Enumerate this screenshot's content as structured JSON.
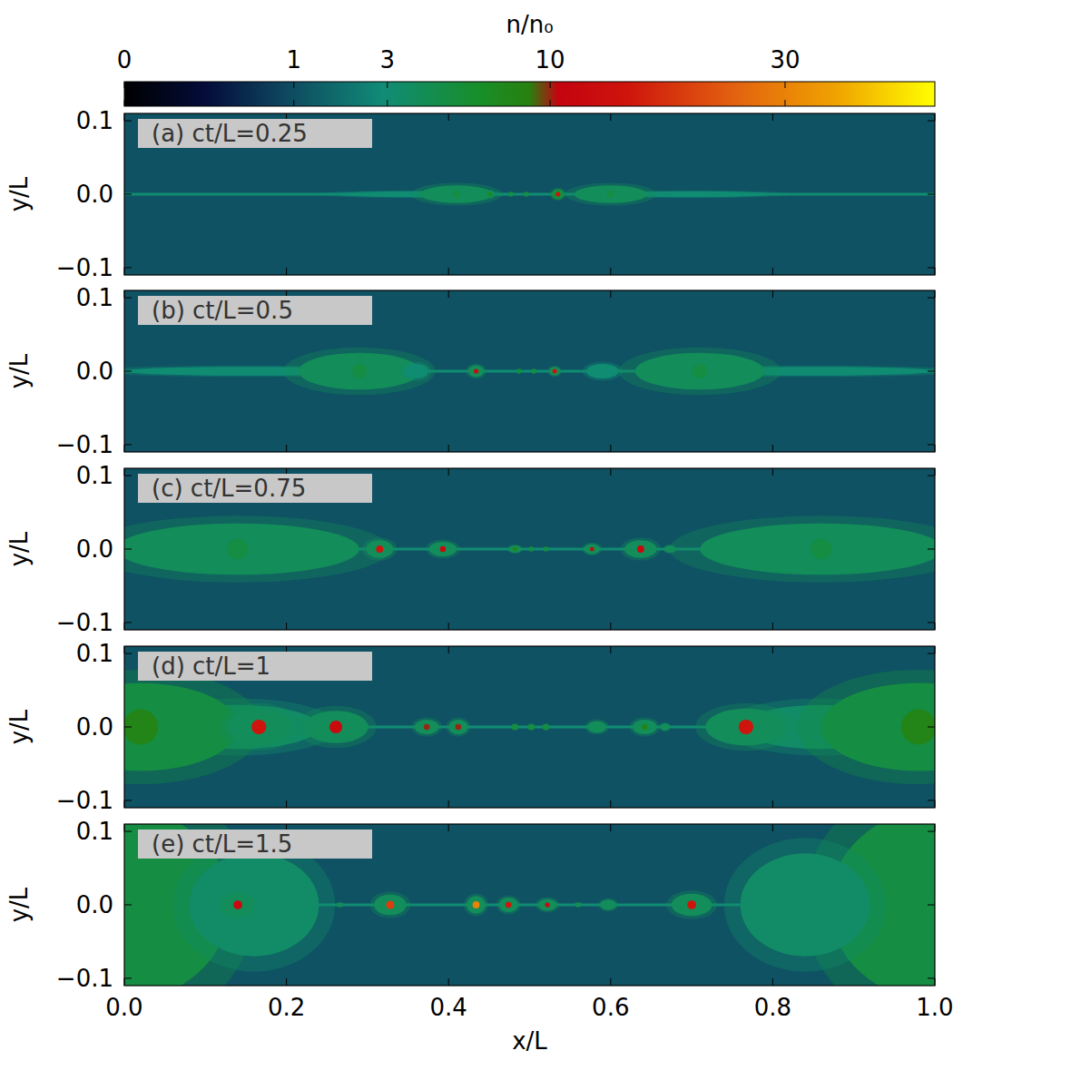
{
  "chart_data": {
    "type": "heatmap",
    "xlabel": "x/L",
    "ylabel": "y/L",
    "xlim": [
      0,
      1
    ],
    "ylim": [
      -0.11,
      0.11
    ],
    "xticks": [
      {
        "value": 0,
        "label": "0.0"
      },
      0.2,
      0.4,
      0.6,
      0.8,
      {
        "value": 1,
        "label": "1.0"
      }
    ],
    "yticks": [
      {
        "value": -0.1,
        "label": "−0.1"
      },
      {
        "value": 0,
        "label": "0.0"
      },
      0.1
    ],
    "colorbar": {
      "label": "n/n₀",
      "range": [
        0,
        50
      ],
      "ticks": [
        0,
        1,
        3,
        10,
        30
      ]
    },
    "panels": [
      {
        "title": "(a) ct/L=0.25",
        "background": 1.1,
        "sheet": 3,
        "plasmoids": [
          {
            "x": 0.36,
            "y": 0,
            "dx": 0.1,
            "dy": 0.004,
            "n": 3,
            "core": null
          },
          {
            "x": 0.7,
            "y": 0,
            "dx": 0.1,
            "dy": 0.004,
            "n": 3,
            "core": null
          },
          {
            "x": 0.41,
            "y": 0,
            "dx": 0.045,
            "dy": 0.012,
            "n": 4,
            "core": 5
          },
          {
            "x": 0.451,
            "y": 0,
            "dx": 0.006,
            "dy": 0.005,
            "n": 4,
            "core": 7
          },
          {
            "x": 0.477,
            "y": 0,
            "dx": 0.003,
            "dy": 0.003,
            "n": 5,
            "core": null
          },
          {
            "x": 0.496,
            "y": 0,
            "dx": 0.003,
            "dy": 0.003,
            "n": 5,
            "core": null
          },
          {
            "x": 0.535,
            "y": 0,
            "dx": 0.008,
            "dy": 0.007,
            "n": 5,
            "core": 15
          },
          {
            "x": 0.6,
            "y": 0,
            "dx": 0.045,
            "dy": 0.012,
            "n": 4,
            "core": 5
          }
        ]
      },
      {
        "title": "(b) ct/L=0.5",
        "background": 1.1,
        "sheet": 3,
        "plasmoids": [
          {
            "x": 0.15,
            "y": 0,
            "dx": 0.15,
            "dy": 0.006,
            "n": 3,
            "core": null
          },
          {
            "x": 0.85,
            "y": 0,
            "dx": 0.15,
            "dy": 0.006,
            "n": 3,
            "core": null
          },
          {
            "x": 0.29,
            "y": 0,
            "dx": 0.075,
            "dy": 0.025,
            "n": 4,
            "core": 5
          },
          {
            "x": 0.36,
            "y": 0,
            "dx": 0.015,
            "dy": 0.01,
            "n": 3,
            "core": null
          },
          {
            "x": 0.434,
            "y": 0,
            "dx": 0.01,
            "dy": 0.008,
            "n": 4,
            "core": 12
          },
          {
            "x": 0.487,
            "y": 0,
            "dx": 0.003,
            "dy": 0.003,
            "n": 5,
            "core": null
          },
          {
            "x": 0.505,
            "y": 0,
            "dx": 0.003,
            "dy": 0.003,
            "n": 5,
            "core": null
          },
          {
            "x": 0.531,
            "y": 0,
            "dx": 0.007,
            "dy": 0.006,
            "n": 4,
            "core": 15
          },
          {
            "x": 0.59,
            "y": 0,
            "dx": 0.02,
            "dy": 0.01,
            "n": 3,
            "core": null
          },
          {
            "x": 0.71,
            "y": 0,
            "dx": 0.08,
            "dy": 0.025,
            "n": 4,
            "core": 5
          }
        ]
      },
      {
        "title": "(c) ct/L=0.75",
        "background": 1.1,
        "sheet": 3,
        "plasmoids": [
          {
            "x": 0.14,
            "y": 0,
            "dx": 0.15,
            "dy": 0.035,
            "n": 4,
            "core": 5
          },
          {
            "x": 0.86,
            "y": 0,
            "dx": 0.15,
            "dy": 0.035,
            "n": 4,
            "core": 5
          },
          {
            "x": 0.315,
            "y": 0,
            "dx": 0.017,
            "dy": 0.012,
            "n": 4,
            "core": 15
          },
          {
            "x": 0.393,
            "y": 0,
            "dx": 0.017,
            "dy": 0.01,
            "n": 4,
            "core": 12
          },
          {
            "x": 0.482,
            "y": 0,
            "dx": 0.008,
            "dy": 0.005,
            "n": 4,
            "core": 8
          },
          {
            "x": 0.502,
            "y": 0,
            "dx": 0.003,
            "dy": 0.003,
            "n": 5,
            "core": null
          },
          {
            "x": 0.52,
            "y": 0,
            "dx": 0.003,
            "dy": 0.003,
            "n": 5,
            "core": null
          },
          {
            "x": 0.577,
            "y": 0,
            "dx": 0.01,
            "dy": 0.007,
            "n": 4,
            "core": 10
          },
          {
            "x": 0.637,
            "y": 0,
            "dx": 0.02,
            "dy": 0.012,
            "n": 4,
            "core": 12
          },
          {
            "x": 0.673,
            "y": 0,
            "dx": 0.007,
            "dy": 0.005,
            "n": 4,
            "core": null
          }
        ]
      },
      {
        "title": "(d) ct/L=1",
        "background": 1.1,
        "sheet": 3,
        "plasmoids": [
          {
            "x": 0.14,
            "y": 0,
            "dx": 0.1,
            "dy": 0.03,
            "n": 3.5,
            "core": null
          },
          {
            "x": 0.86,
            "y": 0,
            "dx": 0.1,
            "dy": 0.03,
            "n": 3.5,
            "core": null
          },
          {
            "x": 0.02,
            "y": 0,
            "dx": 0.12,
            "dy": 0.06,
            "n": 5,
            "core": 8
          },
          {
            "x": 0.98,
            "y": 0,
            "dx": 0.12,
            "dy": 0.06,
            "n": 5,
            "core": 8
          },
          {
            "x": 0.166,
            "y": 0,
            "dx": 0.04,
            "dy": 0.025,
            "n": 4,
            "core": 15
          },
          {
            "x": 0.261,
            "y": 0,
            "dx": 0.04,
            "dy": 0.022,
            "n": 4,
            "core": 12
          },
          {
            "x": 0.373,
            "y": 0,
            "dx": 0.015,
            "dy": 0.01,
            "n": 4,
            "core": 10
          },
          {
            "x": 0.412,
            "y": 0,
            "dx": 0.012,
            "dy": 0.01,
            "n": 4,
            "core": 10
          },
          {
            "x": 0.482,
            "y": 0,
            "dx": 0.004,
            "dy": 0.004,
            "n": 5,
            "core": null
          },
          {
            "x": 0.502,
            "y": 0,
            "dx": 0.004,
            "dy": 0.004,
            "n": 5,
            "core": null
          },
          {
            "x": 0.52,
            "y": 0,
            "dx": 0.004,
            "dy": 0.004,
            "n": 5,
            "core": null
          },
          {
            "x": 0.583,
            "y": 0,
            "dx": 0.012,
            "dy": 0.008,
            "n": 4,
            "core": null
          },
          {
            "x": 0.642,
            "y": 0,
            "dx": 0.015,
            "dy": 0.01,
            "n": 4,
            "core": 8
          },
          {
            "x": 0.667,
            "y": 0,
            "dx": 0.006,
            "dy": 0.005,
            "n": 4,
            "core": null
          },
          {
            "x": 0.767,
            "y": 0,
            "dx": 0.05,
            "dy": 0.025,
            "n": 4,
            "core": 15
          }
        ]
      },
      {
        "title": "(e) ct/L=1.5",
        "background": 1.1,
        "sheet": 3,
        "plasmoids": [
          {
            "x": 0.0,
            "y": 0,
            "dx": 0.13,
            "dy": 0.13,
            "n": 5,
            "core": null
          },
          {
            "x": 1.0,
            "y": 0,
            "dx": 0.13,
            "dy": 0.13,
            "n": 5,
            "core": null
          },
          {
            "x": 0.16,
            "y": 0,
            "dx": 0.08,
            "dy": 0.07,
            "n": 3.5,
            "core": null
          },
          {
            "x": 0.84,
            "y": 0,
            "dx": 0.08,
            "dy": 0.07,
            "n": 3.5,
            "core": null
          },
          {
            "x": 0.14,
            "y": 0,
            "dx": 0.02,
            "dy": 0.015,
            "n": 4,
            "core": 12
          },
          {
            "x": 0.266,
            "y": 0,
            "dx": 0.004,
            "dy": 0.003,
            "n": 4,
            "core": null
          },
          {
            "x": 0.328,
            "y": 0,
            "dx": 0.02,
            "dy": 0.014,
            "n": 4,
            "core": 20
          },
          {
            "x": 0.434,
            "y": 0,
            "dx": 0.012,
            "dy": 0.012,
            "n": 4,
            "core": 30
          },
          {
            "x": 0.474,
            "y": 0,
            "dx": 0.012,
            "dy": 0.01,
            "n": 4,
            "core": 15
          },
          {
            "x": 0.522,
            "y": 0,
            "dx": 0.012,
            "dy": 0.008,
            "n": 4,
            "core": 12
          },
          {
            "x": 0.56,
            "y": 0,
            "dx": 0.004,
            "dy": 0.003,
            "n": 4,
            "core": null
          },
          {
            "x": 0.597,
            "y": 0,
            "dx": 0.01,
            "dy": 0.007,
            "n": 4,
            "core": null
          },
          {
            "x": 0.7,
            "y": 0,
            "dx": 0.025,
            "dy": 0.015,
            "n": 4,
            "core": 15
          }
        ]
      }
    ]
  }
}
